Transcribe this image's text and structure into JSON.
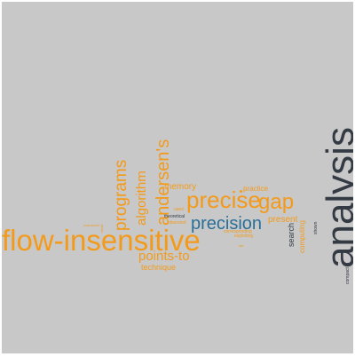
{
  "words": {
    "analysis": "analysis",
    "flow_insensitive": "flow-insensitive",
    "precise": "precise",
    "gap": "gap",
    "precision": "precision",
    "andersens": "andersen's",
    "programs": "programs",
    "algorithm": "algorithm",
    "points_to": "points-to",
    "technique": "technique",
    "memory": "memory",
    "practice": "practice",
    "present": "present",
    "search": "search",
    "computing": "computing",
    "theoretical": "theoretical",
    "observed": "observed",
    "used": "used",
    "shown": "shown",
    "compact": "compact",
    "corresponding": "corresponding",
    "small": "small",
    "real_world": "real-world",
    "exploiting": "exploiting",
    "small_tiny": "set"
  },
  "colors": {
    "background": "#c8c8c8",
    "orange": "#f39a1b",
    "blue": "#2a6f97",
    "dark": "#333a44"
  }
}
